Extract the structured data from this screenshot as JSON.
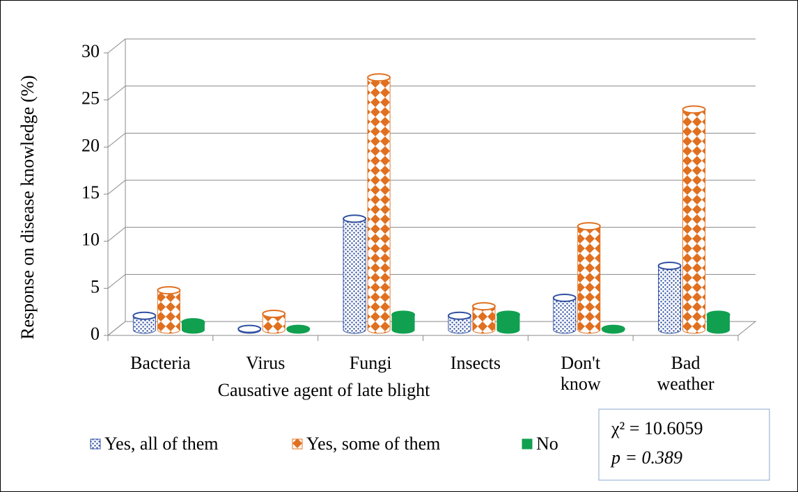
{
  "chart_data": {
    "type": "bar3d",
    "y_axis_label": "Response on disease knowledge (%)",
    "x_axis_label": "Causative agent of late blight",
    "categories": [
      "Bacteria",
      "Virus",
      "Fungi",
      "Insects",
      "Don't know",
      "Bad weather"
    ],
    "series": [
      {
        "name": "Yes, all of them",
        "color": "#2f4fa0",
        "values": [
          1.5,
          0.1,
          11.8,
          1.5,
          3.4,
          6.8
        ]
      },
      {
        "name": "Yes, some of them",
        "color": "#e07020",
        "values": [
          4.2,
          1.7,
          26.8,
          2.5,
          11.0,
          23.4
        ]
      },
      {
        "name": "No",
        "color": "#10a050",
        "values": [
          0.8,
          0.1,
          1.6,
          1.6,
          0.1,
          1.6
        ]
      }
    ],
    "ylim": [
      0,
      30
    ],
    "yticks": [
      0,
      5,
      10,
      15,
      20,
      25,
      30
    ],
    "grid": true,
    "legend": "bottom",
    "annotations": [
      "χ² = 10.6059",
      "p = 0.389"
    ]
  }
}
